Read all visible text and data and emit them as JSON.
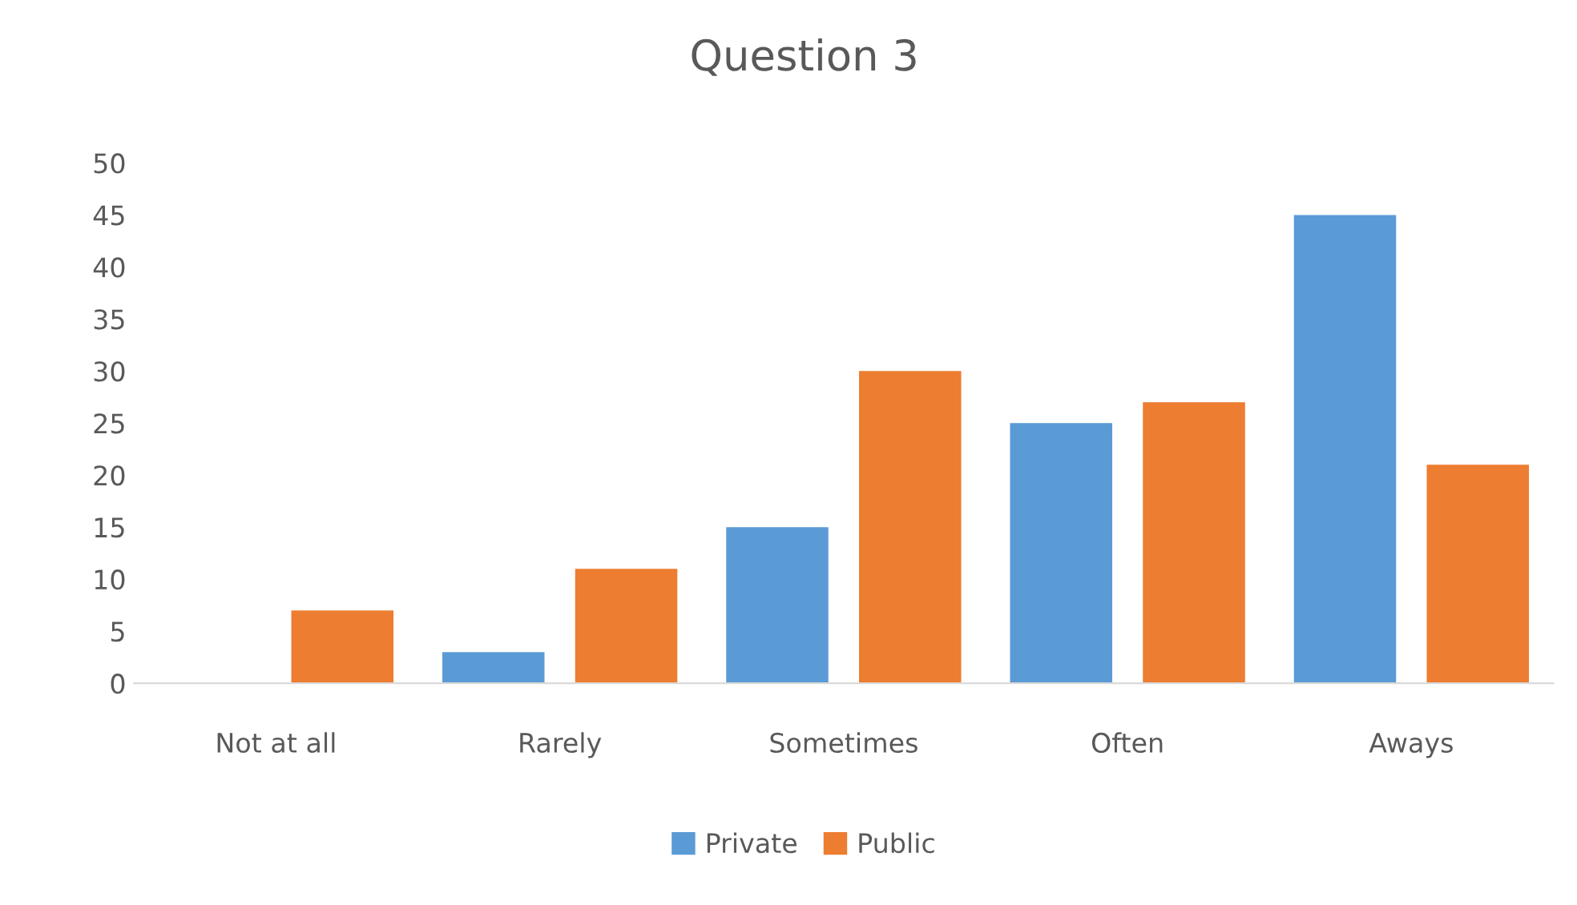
{
  "chart_data": {
    "type": "bar",
    "title": "Question 3",
    "categories": [
      "Not at all",
      "Rarely",
      "Sometimes",
      "Often",
      "Aways"
    ],
    "series": [
      {
        "name": "Private",
        "color": "#5b9bd5",
        "values": [
          0,
          3,
          15,
          25,
          45
        ]
      },
      {
        "name": "Public",
        "color": "#ed7d31",
        "values": [
          7,
          11,
          30,
          27,
          21
        ]
      }
    ],
    "ylim": [
      0,
      50
    ],
    "yticks": [
      0,
      5,
      10,
      15,
      20,
      25,
      30,
      35,
      40,
      45,
      50
    ],
    "grid": false,
    "legend": "bottom"
  }
}
